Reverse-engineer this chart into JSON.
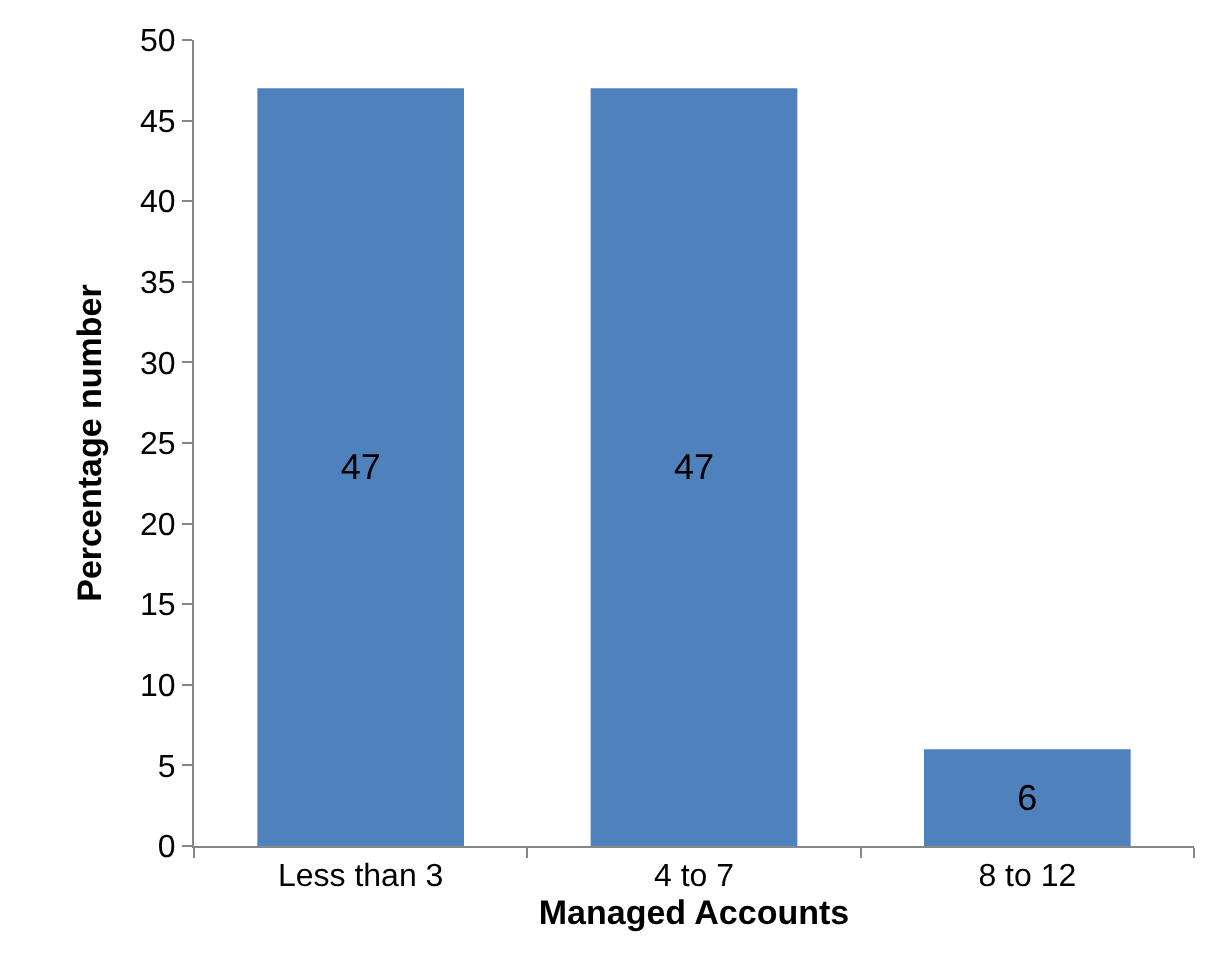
{
  "chart_data": {
    "type": "bar",
    "xlabel": "Managed Accounts",
    "ylabel": "Percentage number",
    "categories": [
      "Less than 3",
      "4 to 7",
      "8 to 12"
    ],
    "values": [
      47,
      47,
      6
    ],
    "color": "#4f81bd",
    "ylim": [
      0,
      50
    ],
    "yticks": [
      0,
      5,
      10,
      15,
      20,
      25,
      30,
      35,
      40,
      45,
      50
    ],
    "data_labels": true
  }
}
